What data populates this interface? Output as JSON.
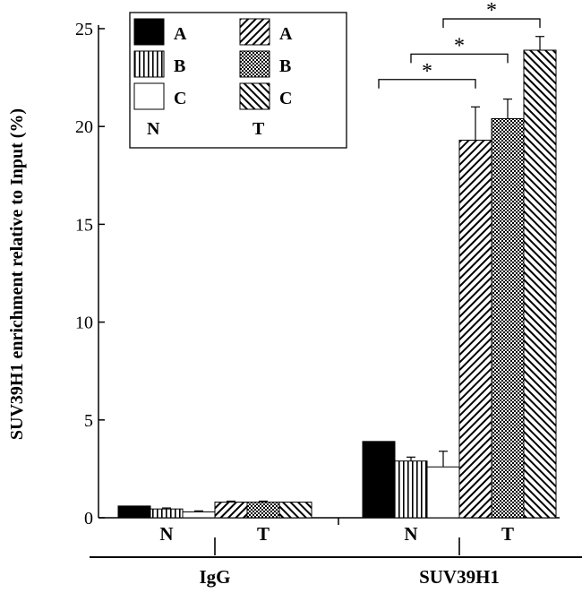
{
  "chart_data": {
    "type": "bar",
    "ylabel": "SUV39H1 enrichment relative to Input (%)",
    "ylim": [
      0,
      25
    ],
    "yticks": [
      0,
      5,
      10,
      15,
      20,
      25
    ],
    "groups": [
      {
        "name": "IgG",
        "subgroups": [
          {
            "name": "N",
            "bars": [
              {
                "label": "A",
                "value": 0.6,
                "error": 0.0,
                "pattern": "solid"
              },
              {
                "label": "B",
                "value": 0.45,
                "error": 0.05,
                "pattern": "vertical"
              },
              {
                "label": "C",
                "value": 0.3,
                "error": 0.05,
                "pattern": "empty"
              }
            ]
          },
          {
            "name": "T",
            "bars": [
              {
                "label": "A",
                "value": 0.8,
                "error": 0.05,
                "pattern": "diag-up"
              },
              {
                "label": "B",
                "value": 0.8,
                "error": 0.05,
                "pattern": "checker"
              },
              {
                "label": "C",
                "value": 0.8,
                "error": 0.0,
                "pattern": "diag-down"
              }
            ]
          }
        ]
      },
      {
        "name": "SUV39H1",
        "subgroups": [
          {
            "name": "N",
            "bars": [
              {
                "label": "A",
                "value": 3.9,
                "error": 0.0,
                "pattern": "solid"
              },
              {
                "label": "B",
                "value": 2.9,
                "error": 0.2,
                "pattern": "vertical"
              },
              {
                "label": "C",
                "value": 2.6,
                "error": 0.8,
                "pattern": "empty"
              }
            ]
          },
          {
            "name": "T",
            "bars": [
              {
                "label": "A",
                "value": 19.3,
                "error": 1.7,
                "pattern": "diag-up"
              },
              {
                "label": "B",
                "value": 20.4,
                "error": 1.0,
                "pattern": "checker"
              },
              {
                "label": "C",
                "value": 23.9,
                "error": 0.7,
                "pattern": "diag-down"
              }
            ]
          }
        ]
      }
    ],
    "legend": {
      "position": "top-left",
      "columns": [
        {
          "title": "N",
          "entries": [
            {
              "label": "A",
              "pattern": "solid"
            },
            {
              "label": "B",
              "pattern": "vertical"
            },
            {
              "label": "C",
              "pattern": "empty"
            }
          ]
        },
        {
          "title": "T",
          "entries": [
            {
              "label": "A",
              "pattern": "diag-up"
            },
            {
              "label": "B",
              "pattern": "checker"
            },
            {
              "label": "C",
              "pattern": "diag-down"
            }
          ]
        }
      ]
    },
    "significance": [
      {
        "group": 1,
        "from": 0,
        "to": 3,
        "label": "*"
      },
      {
        "group": 1,
        "from": 1,
        "to": 4,
        "label": "*"
      },
      {
        "group": 1,
        "from": 2,
        "to": 5,
        "label": "*"
      }
    ]
  }
}
